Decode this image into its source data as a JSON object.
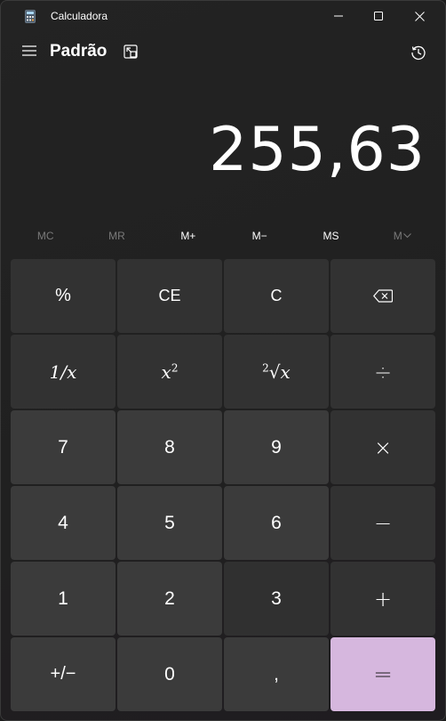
{
  "window": {
    "title": "Calculadora",
    "icons": {
      "app": "calculator-app-icon",
      "minimize": "minimize-icon",
      "maximize": "maximize-icon",
      "close": "close-icon"
    }
  },
  "header": {
    "mode": "Padrão",
    "icons": {
      "menu": "hamburger-icon",
      "keep_on_top": "keep-on-top-icon",
      "history": "history-icon"
    }
  },
  "display": {
    "value": "255,63"
  },
  "memory": {
    "mc": "MC",
    "mr": "MR",
    "mplus": "M+",
    "mminus": "M−",
    "ms": "MS",
    "mlist": "M"
  },
  "keys": {
    "percent": "%",
    "ce": "CE",
    "c": "C",
    "backspace_icon": "backspace-icon",
    "reciprocal": "1/x",
    "square": "x",
    "square_sup": "2",
    "sqrt": "√x",
    "sqrt_sup": "2",
    "divide": "÷",
    "seven": "7",
    "eight": "8",
    "nine": "9",
    "multiply": "×",
    "four": "4",
    "five": "5",
    "six": "6",
    "minus": "−",
    "one": "1",
    "two": "2",
    "three": "3",
    "plus": "+",
    "negate": "+/−",
    "zero": "0",
    "decimal": ",",
    "equals": "="
  },
  "colors": {
    "background": "#202020",
    "number_key": "#3b3b3b",
    "operator_key": "#323232",
    "equals_key": "#d6b7de",
    "disabled_text": "#7a7a7a"
  }
}
